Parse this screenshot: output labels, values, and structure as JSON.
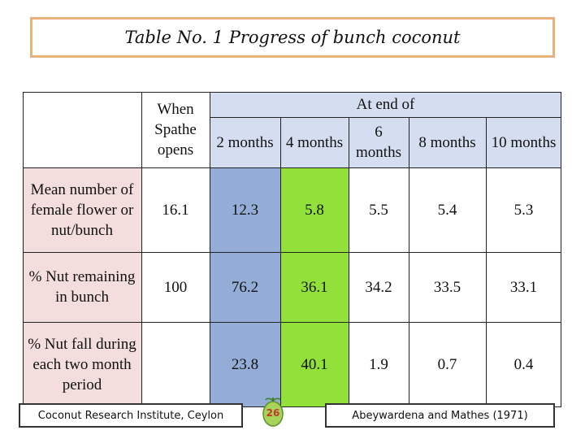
{
  "title": "Table No. 1 Progress of bunch coconut",
  "header": {
    "when_label": "When Spathe opens",
    "at_end_of": "At end of",
    "months": [
      "2 months",
      "4 months",
      "6 months",
      "8 months",
      "10 months"
    ]
  },
  "rows": [
    {
      "label": "Mean number of female flower or nut/bunch",
      "values": [
        "16.1",
        "12.3",
        "5.8",
        "5.5",
        "5.4",
        "5.3"
      ]
    },
    {
      "label": "% Nut remaining in bunch",
      "values": [
        "100",
        "76.2",
        "36.1",
        "34.2",
        "33.5",
        "33.1"
      ]
    },
    {
      "label": "% Nut fall during each two month period",
      "values": [
        "",
        "23.8",
        "40.1",
        "1.9",
        "0.7",
        "0.4"
      ]
    }
  ],
  "footer": {
    "left_credit": "Coconut Research Institute, Ceylon",
    "page_number": "26",
    "right_credit": "Abeywardena and Mathes (1971)"
  },
  "colors": {
    "title_border": "#e8b07a",
    "header_shade": "#d4def0",
    "row_label_shade": "#f3dddd",
    "col_2_months": "#93add6",
    "col_4_months": "#92e03a"
  }
}
